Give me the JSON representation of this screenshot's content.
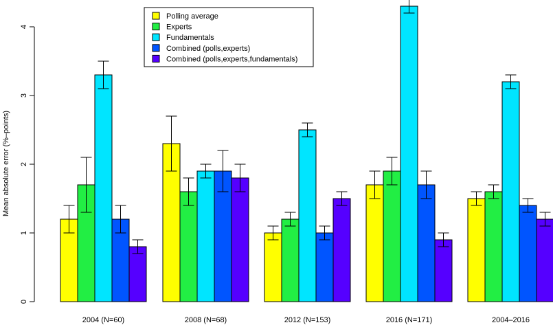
{
  "chart_data": {
    "type": "bar",
    "ylabel": "Mean absolute error (%–points)",
    "xlabel": "",
    "ylim": [
      0,
      4.3
    ],
    "yticks": [
      0,
      1,
      2,
      3,
      4
    ],
    "categories": [
      "2004 (N=60)",
      "2008 (N=68)",
      "2012 (N=153)",
      "2016 (N=171)",
      "2004–2016"
    ],
    "series": [
      {
        "name": "Polling average",
        "color": "#ffff00",
        "values": [
          1.2,
          2.3,
          1.0,
          1.7,
          1.5
        ],
        "error_low": [
          1.0,
          1.9,
          0.9,
          1.5,
          1.4
        ],
        "error_high": [
          1.4,
          2.7,
          1.1,
          1.9,
          1.6
        ]
      },
      {
        "name": "Experts",
        "color": "#22ee44",
        "values": [
          1.7,
          1.6,
          1.2,
          1.9,
          1.6
        ],
        "error_low": [
          1.3,
          1.4,
          1.1,
          1.7,
          1.5
        ],
        "error_high": [
          2.1,
          1.8,
          1.3,
          2.1,
          1.7
        ]
      },
      {
        "name": "Fundamentals",
        "color": "#00e5ff",
        "values": [
          3.3,
          1.9,
          2.5,
          4.3,
          3.2
        ],
        "error_low": [
          3.1,
          1.8,
          2.4,
          4.2,
          3.1
        ],
        "error_high": [
          3.5,
          2.0,
          2.6,
          4.4,
          3.3
        ]
      },
      {
        "name": "Combined (polls,experts)",
        "color": "#0055ff",
        "values": [
          1.2,
          1.9,
          1.0,
          1.7,
          1.4
        ],
        "error_low": [
          1.0,
          1.6,
          0.9,
          1.5,
          1.3
        ],
        "error_high": [
          1.4,
          2.2,
          1.1,
          1.9,
          1.5
        ]
      },
      {
        "name": "Combined (polls,experts,fundamentals)",
        "color": "#5500ff",
        "values": [
          0.8,
          1.8,
          1.5,
          0.9,
          1.2
        ],
        "error_low": [
          0.7,
          1.6,
          1.4,
          0.8,
          1.1
        ],
        "error_high": [
          0.9,
          2.0,
          1.6,
          1.0,
          1.3
        ]
      }
    ],
    "legend_position": "top-center",
    "grid": false
  }
}
